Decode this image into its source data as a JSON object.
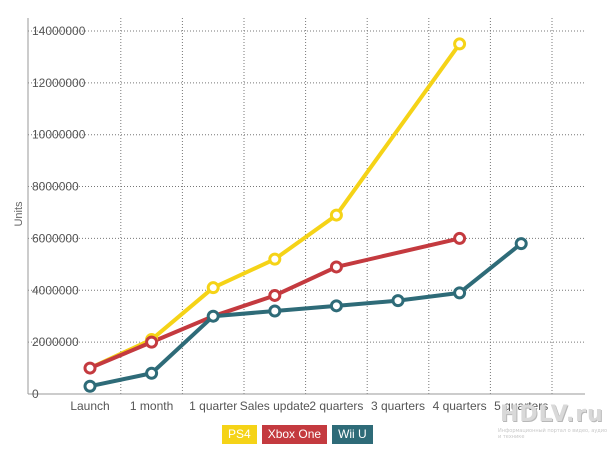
{
  "chart_data": {
    "type": "line",
    "ylabel": "Units",
    "xlabel": "",
    "categories": [
      "Launch",
      "1 month",
      "1 quarter",
      "Sales update",
      "2 quarters",
      "3 quarters",
      "4 quarters",
      "5 quarters"
    ],
    "ylim": [
      0,
      14500000
    ],
    "yticks": [
      {
        "value": 0,
        "label": "0"
      },
      {
        "value": 2000000,
        "label": "2000000"
      },
      {
        "value": 4000000,
        "label": "4000000"
      },
      {
        "value": 6000000,
        "label": "6000000"
      },
      {
        "value": 8000000,
        "label": "8000000"
      },
      {
        "value": 10000000,
        "label": "10000000"
      },
      {
        "value": 12000000,
        "label": "12000000"
      },
      {
        "value": 14000000,
        "label": "14000000"
      }
    ],
    "grid": true,
    "legend_position": "bottom",
    "series": [
      {
        "name": "PS4",
        "color": "#f5d317",
        "values": [
          1000000,
          2100000,
          4100000,
          5200000,
          6900000,
          null,
          13500000,
          null
        ],
        "markers": [
          false,
          true,
          true,
          true,
          true,
          false,
          true,
          false
        ]
      },
      {
        "name": "Xbox One",
        "color": "#c43a3f",
        "values": [
          1000000,
          2000000,
          3000000,
          3800000,
          4900000,
          null,
          6000000,
          null
        ],
        "markers": [
          true,
          true,
          false,
          true,
          true,
          false,
          true,
          false
        ]
      },
      {
        "name": "Wii U",
        "color": "#2e6b78",
        "values": [
          300000,
          800000,
          3000000,
          3200000,
          3400000,
          3600000,
          3900000,
          5800000
        ],
        "markers": [
          true,
          true,
          true,
          true,
          true,
          true,
          true,
          true
        ]
      }
    ]
  },
  "watermark": {
    "text": "HDLV.ru",
    "sub": "Информационный портал о видео, аудио и технике"
  }
}
